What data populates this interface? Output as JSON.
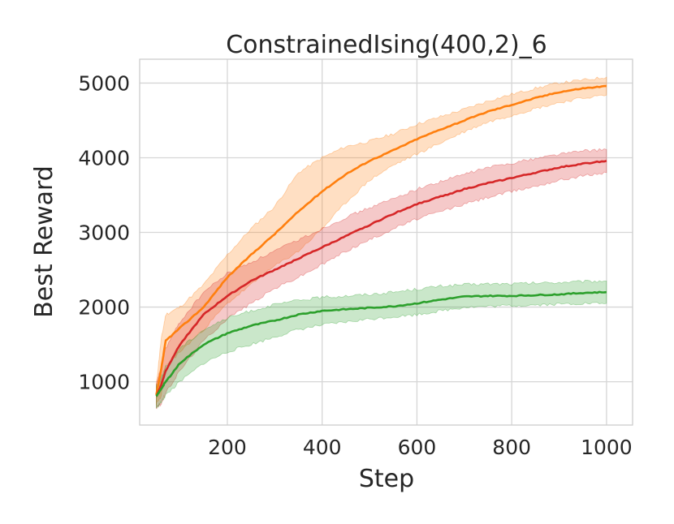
{
  "chart_data": {
    "type": "line",
    "title": "ConstrainedIsing(400,2)_6",
    "xlabel": "Step",
    "ylabel": "Best Reward",
    "xlim": [
      15,
      1055
    ],
    "ylim": [
      420,
      5320
    ],
    "xticks": [
      200,
      400,
      600,
      800,
      1000
    ],
    "yticks": [
      1000,
      2000,
      3000,
      4000,
      5000
    ],
    "grid": true,
    "series": [
      {
        "color": "#ff7f0e",
        "x": [
          50,
          60,
          70,
          100,
          150,
          200,
          250,
          300,
          350,
          400,
          450,
          500,
          550,
          600,
          650,
          700,
          750,
          800,
          850,
          900,
          950,
          1000
        ],
        "y": [
          820,
          1150,
          1550,
          1720,
          2000,
          2400,
          2700,
          2980,
          3280,
          3550,
          3780,
          3960,
          4100,
          4250,
          4380,
          4500,
          4620,
          4710,
          4800,
          4880,
          4930,
          4960
        ],
        "lower": [
          700,
          800,
          1200,
          1400,
          1700,
          2050,
          2300,
          2550,
          2750,
          3050,
          3400,
          3700,
          3900,
          4050,
          4200,
          4350,
          4480,
          4570,
          4660,
          4740,
          4800,
          4840
        ],
        "upper": [
          950,
          1550,
          1900,
          2000,
          2300,
          2700,
          3050,
          3350,
          3800,
          4000,
          4150,
          4220,
          4320,
          4450,
          4550,
          4650,
          4760,
          4850,
          4930,
          5000,
          5040,
          5080
        ]
      },
      {
        "color": "#d62728",
        "x": [
          50,
          60,
          70,
          100,
          150,
          200,
          250,
          300,
          350,
          400,
          450,
          500,
          550,
          600,
          650,
          700,
          750,
          800,
          850,
          900,
          950,
          1000
        ],
        "y": [
          800,
          950,
          1150,
          1500,
          1900,
          2150,
          2350,
          2500,
          2650,
          2800,
          2950,
          3100,
          3250,
          3380,
          3480,
          3580,
          3660,
          3730,
          3800,
          3870,
          3920,
          3960
        ],
        "lower": [
          650,
          700,
          850,
          1150,
          1550,
          1850,
          2050,
          2250,
          2400,
          2570,
          2750,
          2900,
          3050,
          3180,
          3280,
          3380,
          3470,
          3550,
          3620,
          3700,
          3760,
          3800
        ],
        "upper": [
          950,
          1200,
          1450,
          1800,
          2200,
          2450,
          2600,
          2750,
          2900,
          3050,
          3200,
          3330,
          3450,
          3580,
          3680,
          3780,
          3870,
          3930,
          3990,
          4050,
          4090,
          4110
        ]
      },
      {
        "color": "#2ca02c",
        "x": [
          50,
          60,
          70,
          100,
          150,
          200,
          250,
          300,
          350,
          400,
          450,
          500,
          550,
          600,
          650,
          700,
          750,
          800,
          850,
          900,
          950,
          1000
        ],
        "y": [
          800,
          900,
          1000,
          1250,
          1500,
          1650,
          1750,
          1820,
          1900,
          1950,
          1970,
          1990,
          2010,
          2050,
          2100,
          2140,
          2150,
          2150,
          2160,
          2170,
          2190,
          2200
        ],
        "lower": [
          650,
          720,
          820,
          1000,
          1250,
          1400,
          1500,
          1600,
          1700,
          1760,
          1800,
          1840,
          1870,
          1900,
          1950,
          2000,
          2010,
          2020,
          2030,
          2040,
          2050,
          2050
        ],
        "upper": [
          950,
          1050,
          1200,
          1450,
          1700,
          1850,
          1950,
          2030,
          2090,
          2130,
          2150,
          2170,
          2200,
          2240,
          2280,
          2300,
          2310,
          2310,
          2320,
          2330,
          2340,
          2350
        ]
      }
    ]
  }
}
